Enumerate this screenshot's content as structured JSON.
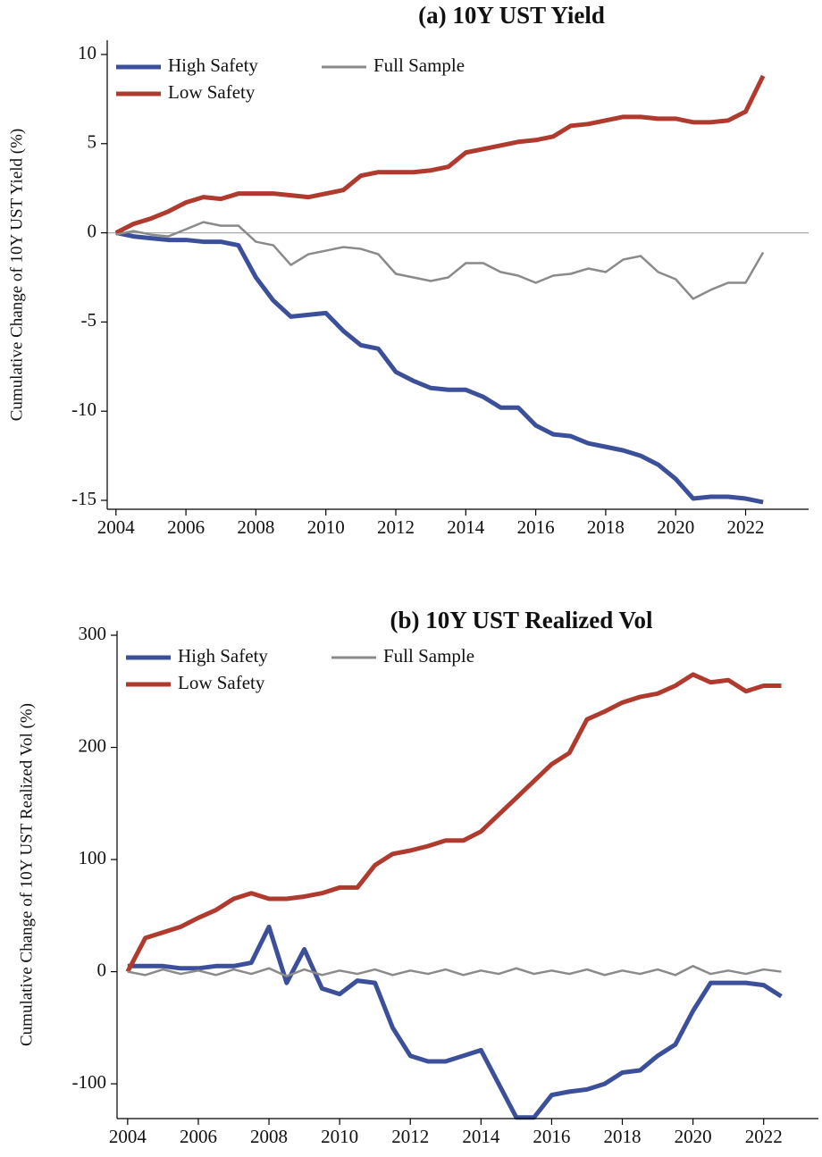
{
  "chart_data": [
    {
      "type": "line",
      "title": "(a) 10Y UST Yield",
      "y_label": "Cumulative Change of 10Y UST Yield (%)",
      "x": [
        2004,
        2004.5,
        2005,
        2005.5,
        2006,
        2006.5,
        2007,
        2007.5,
        2008,
        2008.5,
        2009,
        2009.5,
        2010,
        2010.5,
        2011,
        2011.5,
        2012,
        2012.5,
        2013,
        2013.5,
        2014,
        2014.5,
        2015,
        2015.5,
        2016,
        2016.5,
        2017,
        2017.5,
        2018,
        2018.5,
        2019,
        2019.5,
        2020,
        2020.5,
        2021,
        2021.5,
        2022,
        2022.5
      ],
      "series": [
        {
          "name": "High Safety",
          "color": "#3c4f9a",
          "values": [
            0,
            -0.2,
            -0.3,
            -0.4,
            -0.4,
            -0.5,
            -0.5,
            -0.7,
            -2.5,
            -3.8,
            -4.7,
            -4.6,
            -4.5,
            -5.5,
            -6.3,
            -6.5,
            -7.8,
            -8.3,
            -8.7,
            -8.8,
            -8.8,
            -9.2,
            -9.8,
            -9.8,
            -10.8,
            -11.3,
            -11.4,
            -11.8,
            -12.0,
            -12.2,
            -12.5,
            -13.0,
            -13.8,
            -14.9,
            -14.8,
            -14.8,
            -14.9,
            -15.1
          ]
        },
        {
          "name": "Low Safety",
          "color": "#b03a2e",
          "values": [
            0,
            0.5,
            0.8,
            1.2,
            1.7,
            2.0,
            1.9,
            2.2,
            2.2,
            2.2,
            2.1,
            2.0,
            2.2,
            2.4,
            3.2,
            3.4,
            3.4,
            3.4,
            3.5,
            3.7,
            4.5,
            4.7,
            4.9,
            5.1,
            5.2,
            5.4,
            6.0,
            6.1,
            6.3,
            6.5,
            6.5,
            6.4,
            6.4,
            6.2,
            6.2,
            6.3,
            6.8,
            8.8
          ]
        },
        {
          "name": "Full Sample",
          "color": "#8a8a8a",
          "values": [
            -0.1,
            0.1,
            -0.1,
            -0.2,
            0.2,
            0.6,
            0.4,
            0.4,
            -0.5,
            -0.7,
            -1.8,
            -1.2,
            -1.0,
            -0.8,
            -0.9,
            -1.2,
            -2.3,
            -2.5,
            -2.7,
            -2.5,
            -1.7,
            -1.7,
            -2.2,
            -2.4,
            -2.8,
            -2.4,
            -2.3,
            -2.0,
            -2.2,
            -1.5,
            -1.3,
            -2.2,
            -2.6,
            -3.7,
            -3.2,
            -2.8,
            -2.8,
            -1.1
          ]
        }
      ],
      "xlim": [
        2003.75,
        2023.8
      ],
      "xticks": [
        2004,
        2006,
        2008,
        2010,
        2012,
        2014,
        2016,
        2018,
        2020,
        2022
      ],
      "ylim": [
        -15.5,
        10.8
      ],
      "yticks": [
        -15,
        -10,
        -5,
        0,
        5,
        10
      ],
      "zero_line": true
    },
    {
      "type": "line",
      "title": "(b) 10Y UST Realized Vol",
      "y_label": "Cumulative Change of 10Y UST Realized Vol (%)",
      "x": [
        2004,
        2004.5,
        2005,
        2005.5,
        2006,
        2006.5,
        2007,
        2007.5,
        2008,
        2008.5,
        2009,
        2009.5,
        2010,
        2010.5,
        2011,
        2011.5,
        2012,
        2012.5,
        2013,
        2013.5,
        2014,
        2014.5,
        2015,
        2015.5,
        2016,
        2016.5,
        2017,
        2017.5,
        2018,
        2018.5,
        2019,
        2019.5,
        2020,
        2020.5,
        2021,
        2021.5,
        2022,
        2022.5
      ],
      "series": [
        {
          "name": "High Safety",
          "color": "#3c4f9a",
          "values": [
            5,
            5,
            5,
            3,
            3,
            5,
            5,
            8,
            40,
            -10,
            20,
            -15,
            -20,
            -8,
            -10,
            -50,
            -75,
            -80,
            -80,
            -75,
            -70,
            -100,
            -130,
            -130,
            -110,
            -107,
            -105,
            -100,
            -90,
            -88,
            -75,
            -65,
            -35,
            -10,
            -10,
            -10,
            -12,
            -22
          ]
        },
        {
          "name": "Low Safety",
          "color": "#b03a2e",
          "values": [
            0,
            30,
            35,
            40,
            48,
            55,
            65,
            70,
            65,
            65,
            67,
            70,
            75,
            75,
            95,
            105,
            108,
            112,
            117,
            117,
            125,
            140,
            155,
            170,
            185,
            195,
            225,
            232,
            240,
            245,
            248,
            255,
            265,
            258,
            260,
            250,
            255,
            255
          ]
        },
        {
          "name": "Full Sample",
          "color": "#8a8a8a",
          "values": [
            0,
            -3,
            2,
            -2,
            1,
            -3,
            2,
            -2,
            3,
            -4,
            2,
            -3,
            1,
            -2,
            2,
            -3,
            1,
            -2,
            2,
            -3,
            1,
            -2,
            3,
            -2,
            1,
            -2,
            2,
            -3,
            1,
            -2,
            2,
            -3,
            5,
            -2,
            1,
            -2,
            2,
            0
          ]
        }
      ],
      "xlim": [
        2003.7,
        2023.55
      ],
      "xticks": [
        2004,
        2006,
        2008,
        2010,
        2012,
        2014,
        2016,
        2018,
        2020,
        2022
      ],
      "ylim": [
        -131,
        304
      ],
      "yticks": [
        -100,
        0,
        100,
        200,
        300
      ],
      "zero_line": false
    }
  ]
}
